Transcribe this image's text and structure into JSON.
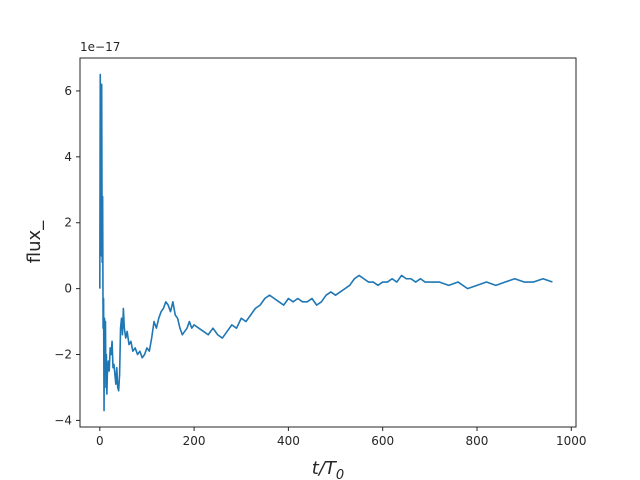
{
  "chart_data": {
    "type": "line",
    "title": "",
    "xlabel": "t/T",
    "xlabel_sub": "0",
    "ylabel": "flux_",
    "y_offset_text": "1e−17",
    "xlim": [
      -42,
      1010
    ],
    "ylim": [
      -4.2,
      7.0
    ],
    "xticks": [
      0,
      200,
      400,
      600,
      800,
      1000
    ],
    "yticks": [
      -4,
      -2,
      0,
      2,
      4,
      6
    ],
    "grid": false,
    "legend": "none",
    "series": [
      {
        "color": "#1f77b4",
        "x": [
          0,
          1,
          2,
          3,
          4,
          5,
          6,
          7,
          8,
          9,
          10,
          11,
          12,
          13,
          14,
          15,
          16,
          18,
          20,
          22,
          24,
          26,
          28,
          30,
          32,
          34,
          36,
          38,
          40,
          42,
          44,
          46,
          48,
          50,
          52,
          55,
          58,
          62,
          66,
          70,
          75,
          80,
          85,
          90,
          95,
          100,
          105,
          110,
          115,
          120,
          125,
          130,
          135,
          140,
          145,
          150,
          155,
          160,
          165,
          170,
          175,
          180,
          185,
          190,
          195,
          200,
          210,
          220,
          230,
          240,
          250,
          260,
          270,
          280,
          290,
          300,
          310,
          320,
          330,
          340,
          350,
          360,
          370,
          380,
          390,
          400,
          410,
          420,
          430,
          440,
          450,
          460,
          470,
          480,
          490,
          500,
          510,
          520,
          530,
          540,
          550,
          560,
          570,
          580,
          590,
          600,
          610,
          620,
          630,
          640,
          650,
          660,
          670,
          680,
          690,
          700,
          720,
          740,
          760,
          780,
          800,
          820,
          840,
          860,
          880,
          900,
          920,
          940,
          960
        ],
        "y": [
          0.0,
          6.5,
          1.0,
          3.5,
          6.2,
          0.8,
          2.8,
          -1.2,
          -0.3,
          -3.7,
          -0.9,
          -2.2,
          -1.0,
          -3.0,
          -2.0,
          -3.2,
          -2.6,
          -2.2,
          -2.5,
          -1.8,
          -2.0,
          -1.6,
          -2.4,
          -2.3,
          -2.6,
          -2.9,
          -2.4,
          -3.0,
          -3.1,
          -2.6,
          -1.2,
          -0.9,
          -1.4,
          -0.6,
          -1.2,
          -1.5,
          -1.3,
          -1.7,
          -1.6,
          -1.9,
          -1.8,
          -2.0,
          -1.9,
          -2.1,
          -2.0,
          -1.8,
          -1.9,
          -1.5,
          -1.0,
          -1.2,
          -0.9,
          -0.7,
          -0.6,
          -0.4,
          -0.5,
          -0.7,
          -0.4,
          -0.8,
          -0.9,
          -1.2,
          -1.4,
          -1.3,
          -1.2,
          -1.0,
          -1.2,
          -1.1,
          -1.2,
          -1.3,
          -1.4,
          -1.2,
          -1.4,
          -1.5,
          -1.3,
          -1.1,
          -1.2,
          -0.9,
          -1.0,
          -0.8,
          -0.6,
          -0.5,
          -0.3,
          -0.2,
          -0.3,
          -0.4,
          -0.5,
          -0.3,
          -0.4,
          -0.3,
          -0.4,
          -0.4,
          -0.3,
          -0.5,
          -0.4,
          -0.2,
          -0.1,
          -0.2,
          -0.1,
          0.0,
          0.1,
          0.3,
          0.4,
          0.3,
          0.2,
          0.2,
          0.1,
          0.2,
          0.2,
          0.3,
          0.2,
          0.4,
          0.3,
          0.3,
          0.2,
          0.3,
          0.2,
          0.2,
          0.2,
          0.1,
          0.2,
          0.0,
          0.1,
          0.2,
          0.1,
          0.2,
          0.3,
          0.2,
          0.2,
          0.3,
          0.2
        ]
      }
    ]
  }
}
